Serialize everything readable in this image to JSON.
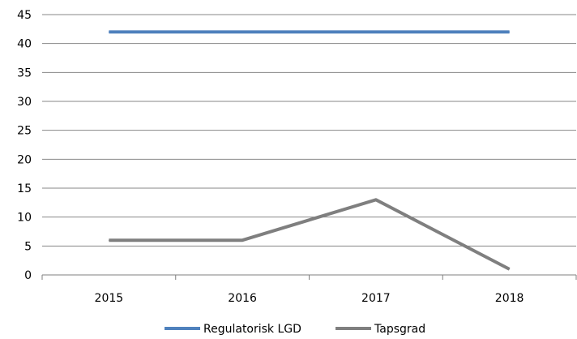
{
  "chart_data": {
    "type": "line",
    "categories": [
      "2015",
      "2016",
      "2017",
      "2018"
    ],
    "series": [
      {
        "name": "Regulatorisk LGD",
        "values": [
          42,
          42,
          42,
          42
        ],
        "color": "#4f81bd"
      },
      {
        "name": "Tapsgrad",
        "values": [
          6,
          6,
          13,
          1
        ],
        "color": "#7f7f7f"
      }
    ],
    "yticks": [
      "0",
      "5",
      "10",
      "15",
      "20",
      "25",
      "30",
      "35",
      "40",
      "45"
    ],
    "ylim": [
      0,
      45
    ],
    "grid": true,
    "legend_position": "bottom"
  }
}
